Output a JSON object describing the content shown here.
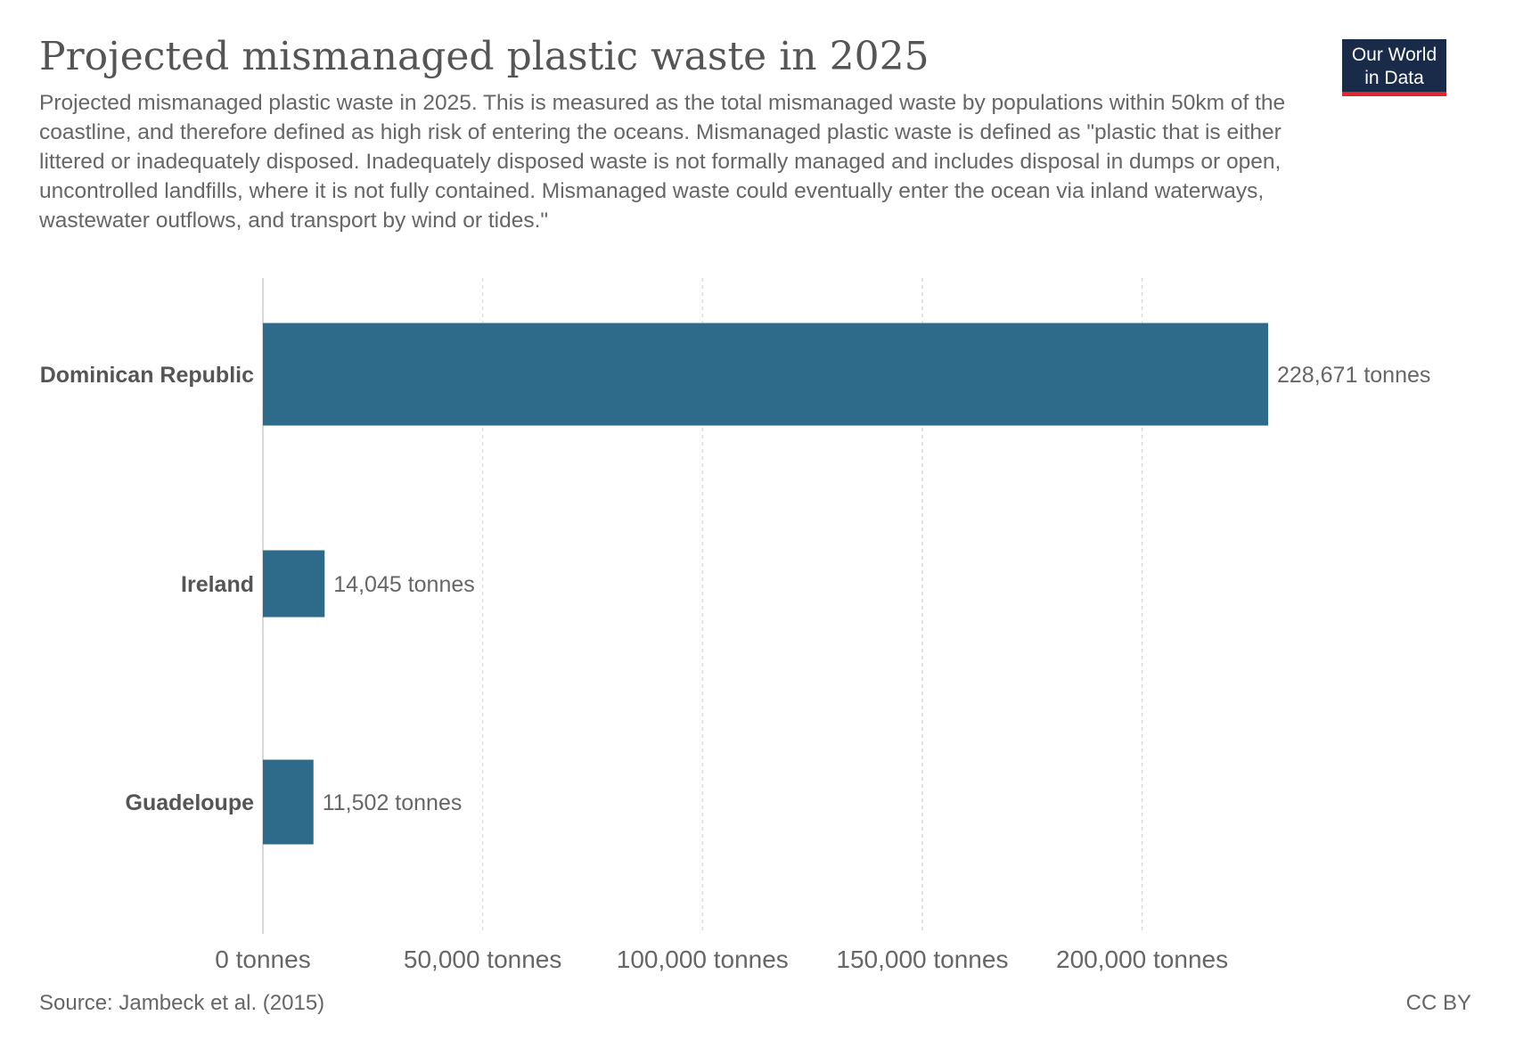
{
  "header": {
    "title": "Projected mismanaged plastic waste in 2025",
    "subtitle": "Projected mismanaged plastic waste in 2025. This is measured as the total mismanaged waste by populations within 50km of the coastline, and therefore defined as high risk of entering the oceans. Mismanaged plastic waste is defined as \"plastic that is either littered or inadequately disposed. Inadequately disposed waste is not formally managed and includes disposal in dumps or open, uncontrolled landfills, where it is not fully contained. Mismanaged waste could eventually enter the ocean via inland waterways, wastewater outflows, and transport by wind or tides.\""
  },
  "logo": {
    "line1": "Our World",
    "line2": "in Data"
  },
  "footer": {
    "source": "Source: Jambeck et al. (2015)",
    "license": "CC BY"
  },
  "colors": {
    "bar": "#2e6b8a",
    "grid": "#dddddd",
    "label_country": "#555555",
    "label_value": "#666666",
    "logo_bg": "#1a2b4a",
    "logo_accent": "#e0262f"
  },
  "chart_data": {
    "type": "bar",
    "orientation": "horizontal",
    "categories": [
      "Dominican Republic",
      "Ireland",
      "Guadeloupe"
    ],
    "values": [
      228671,
      14045,
      11502
    ],
    "value_labels": [
      "228,671 tonnes",
      "14,045 tonnes",
      "11,502 tonnes"
    ],
    "xlim": [
      0,
      228671
    ],
    "xticks": [
      0,
      50000,
      100000,
      150000,
      200000
    ],
    "xtick_labels": [
      "0 tonnes",
      "50,000 tonnes",
      "100,000 tonnes",
      "150,000 tonnes",
      "200,000 tonnes"
    ],
    "grid": true,
    "xlabel": "",
    "ylabel": ""
  }
}
